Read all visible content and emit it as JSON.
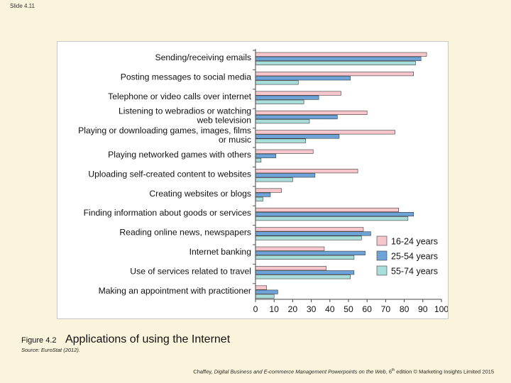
{
  "slide": {
    "number_label": "Slide 4.11"
  },
  "caption": {
    "figure_label": "Figure 4.2",
    "title": "Applications of using the Internet"
  },
  "source": {
    "text": "Source: EuroStat (2012)."
  },
  "footer": {
    "author": "Chaffey, ",
    "book_title": "Digital Business and E-commerce Management Powerpoints on the Web",
    "edition_prefix": ", 6",
    "edition_suffix": "th",
    "rest": " edition © Marketing Insights Limited 2015"
  },
  "chart_data": {
    "type": "bar",
    "orientation": "horizontal",
    "title": "",
    "xlabel": "",
    "ylabel": "",
    "xlim": [
      0,
      100
    ],
    "x_ticks": [
      "0",
      "10",
      "20",
      "30",
      "40",
      "50",
      "60",
      "70",
      "80",
      "90",
      "100"
    ],
    "legend_position": "bottom-right",
    "grid": false,
    "categories": [
      [
        "Sending/receiving emails"
      ],
      [
        "Posting messages to social media"
      ],
      [
        "Telephone or video calls over internet"
      ],
      [
        "Listening to webradios or watching",
        "web television"
      ],
      [
        "Playing or downloading games, images, films",
        "or music"
      ],
      [
        "Playing networked games with others"
      ],
      [
        "Uploading self-created content to websites"
      ],
      [
        "Creating websites or blogs"
      ],
      [
        "Finding information about goods or services"
      ],
      [
        "Reading online news, newspapers"
      ],
      [
        "Internet banking"
      ],
      [
        "Use of services related to travel"
      ],
      [
        "Making an appointment with practitioner"
      ]
    ],
    "series": [
      {
        "name": "16-24 years",
        "color": "#f6c6cc",
        "values": [
          92,
          85,
          46,
          60,
          75,
          31,
          55,
          14,
          77,
          58,
          37,
          38,
          6
        ]
      },
      {
        "name": "25-54 years",
        "color": "#6ea3d8",
        "values": [
          89,
          51,
          34,
          44,
          45,
          11,
          32,
          8,
          85,
          62,
          59,
          53,
          12
        ]
      },
      {
        "name": "55-74 years",
        "color": "#a9ddd9",
        "values": [
          86,
          23,
          26,
          29,
          27,
          3,
          20,
          4,
          82,
          57,
          53,
          51,
          10
        ]
      }
    ]
  }
}
